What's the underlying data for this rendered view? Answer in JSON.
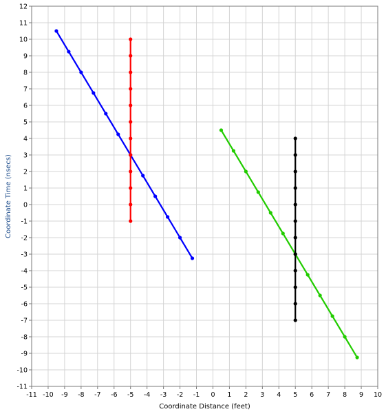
{
  "chart_data": {
    "type": "line",
    "xlabel": "Coordinate Distance (feet)",
    "ylabel": "Coordinate Time (nsecs)",
    "xlim": [
      -11,
      10
    ],
    "ylim": [
      -11,
      12
    ],
    "x_ticks": [
      -11,
      -10,
      -9,
      -8,
      -7,
      -6,
      -5,
      -4,
      -3,
      -2,
      -1,
      0,
      1,
      2,
      3,
      4,
      5,
      6,
      7,
      8,
      9,
      10
    ],
    "y_ticks": [
      12,
      11,
      10,
      9,
      8,
      7,
      6,
      5,
      4,
      3,
      2,
      1,
      0,
      -1,
      -2,
      -3,
      -4,
      -5,
      -6,
      -7,
      -8,
      -9,
      -10,
      -11
    ],
    "grid": true,
    "series": [
      {
        "color": "#0000ff",
        "points": [
          [
            -9.5,
            10.5
          ],
          [
            -8.75,
            9.25
          ],
          [
            -8.0,
            8.0
          ],
          [
            -7.25,
            6.75
          ],
          [
            -6.5,
            5.5
          ],
          [
            -5.75,
            4.25
          ],
          [
            -5.0,
            3.0
          ],
          [
            -4.25,
            1.75
          ],
          [
            -3.5,
            0.5
          ],
          [
            -2.75,
            -0.75
          ],
          [
            -2.0,
            -2.0
          ],
          [
            -1.25,
            -3.25
          ]
        ]
      },
      {
        "color": "#ff0000",
        "points": [
          [
            -5,
            10
          ],
          [
            -5,
            9
          ],
          [
            -5,
            8
          ],
          [
            -5,
            7
          ],
          [
            -5,
            6
          ],
          [
            -5,
            5
          ],
          [
            -5,
            4
          ],
          [
            -5,
            3
          ],
          [
            -5,
            2
          ],
          [
            -5,
            1
          ],
          [
            -5,
            0
          ],
          [
            -5,
            -1
          ]
        ]
      },
      {
        "color": "#22cc00",
        "points": [
          [
            0.5,
            4.5
          ],
          [
            1.25,
            3.25
          ],
          [
            2.0,
            2.0
          ],
          [
            2.75,
            0.75
          ],
          [
            3.5,
            -0.5
          ],
          [
            4.25,
            -1.75
          ],
          [
            5.0,
            -3.0
          ],
          [
            5.75,
            -4.25
          ],
          [
            6.5,
            -5.5
          ],
          [
            7.25,
            -6.75
          ],
          [
            8.0,
            -8.0
          ],
          [
            8.75,
            -9.25
          ]
        ]
      },
      {
        "color": "#000000",
        "points": [
          [
            5,
            4
          ],
          [
            5,
            3
          ],
          [
            5,
            2
          ],
          [
            5,
            1
          ],
          [
            5,
            0
          ],
          [
            5,
            -1
          ],
          [
            5,
            -2
          ],
          [
            5,
            -3
          ],
          [
            5,
            -4
          ],
          [
            5,
            -5
          ],
          [
            5,
            -6
          ],
          [
            5,
            -7
          ]
        ]
      }
    ]
  }
}
